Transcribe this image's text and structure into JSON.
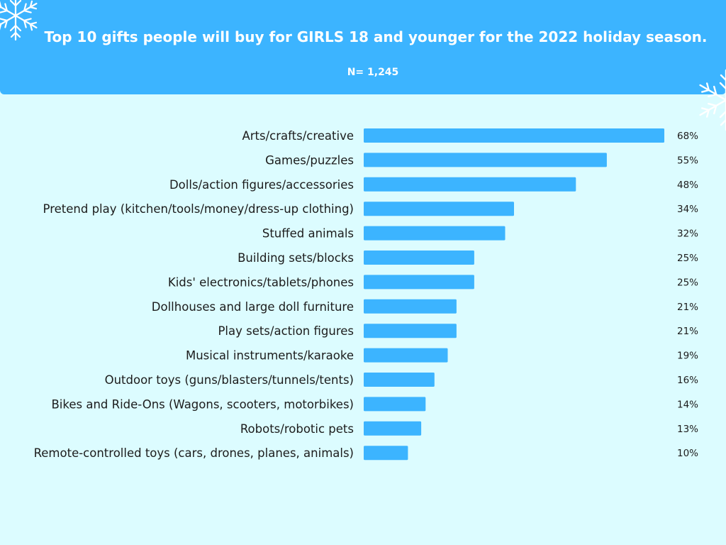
{
  "header": {
    "title": "Top 10 gifts people will buy for GIRLS 18 and younger for the 2022 holiday season.",
    "subtitle": "N= 1,245"
  },
  "colors": {
    "header_bg": "#3cb4ff",
    "page_bg": "#dcfcff",
    "bar": "#3cb4ff",
    "snowflake": "#ffffff"
  },
  "decorations": {
    "top_left_icon": "snowflake-icon",
    "top_right_icon": "snowflake-icon"
  },
  "chart_data": {
    "type": "bar",
    "orientation": "horizontal",
    "title": "Top 10 gifts people will buy for GIRLS 18 and younger for the 2022 holiday season.",
    "subtitle": "N= 1,245",
    "xlabel": "",
    "ylabel": "",
    "xlim": [
      0,
      68
    ],
    "grid": false,
    "legend": "none",
    "categories": [
      "Arts/crafts/creative",
      "Games/puzzles",
      "Dolls/action figures/accessories",
      "Pretend play (kitchen/tools/money/dress-up clothing)",
      "Stuffed animals",
      "Building sets/blocks",
      "Kids' electronics/tablets/phones",
      "Dollhouses and large doll furniture",
      "Play sets/action figures",
      "Musical instruments/karaoke",
      "Outdoor toys (guns/blasters/tunnels/tents)",
      "Bikes and Ride-Ons (Wagons, scooters, motorbikes)",
      "Robots/robotic pets",
      "Remote-controlled toys (cars, drones, planes, animals)"
    ],
    "values": [
      68,
      55,
      48,
      34,
      32,
      25,
      25,
      21,
      21,
      19,
      16,
      14,
      13,
      10
    ],
    "value_labels": [
      "68%",
      "55%",
      "48%",
      "34%",
      "32%",
      "25%",
      "25%",
      "21%",
      "21%",
      "19%",
      "16%",
      "14%",
      "13%",
      "10%"
    ]
  }
}
